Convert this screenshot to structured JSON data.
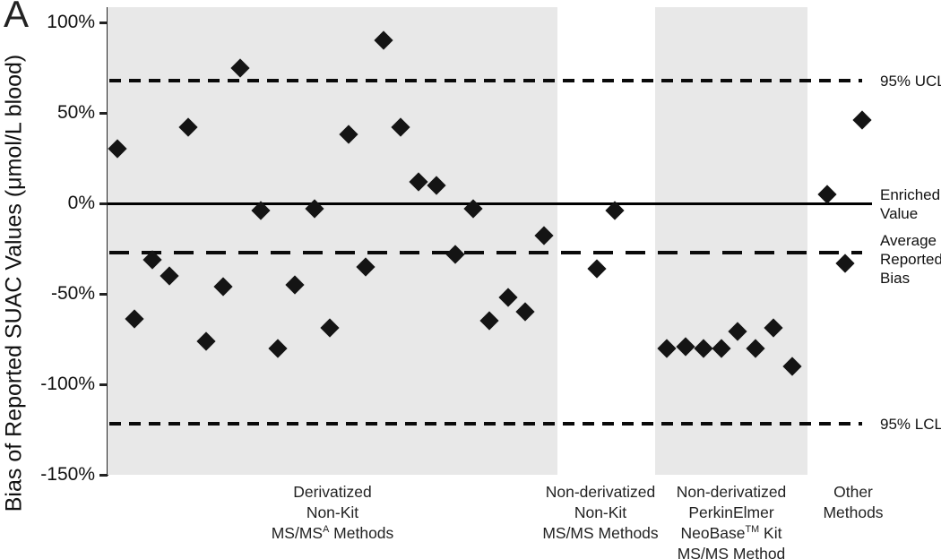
{
  "panel_label": "A",
  "y_axis": {
    "title": "Bias of Reported SUAC Values (μmol/L blood)",
    "ticks": [
      {
        "label": "100%",
        "value": 100
      },
      {
        "label": "50%",
        "value": 50
      },
      {
        "label": "0%",
        "value": 0
      },
      {
        "label": "-50%",
        "value": -50
      },
      {
        "label": "-100%",
        "value": -100
      },
      {
        "label": "-150%",
        "value": -150
      }
    ]
  },
  "colors": {
    "band": "#e8e8e8",
    "marker": "#141414",
    "line": "#000000"
  },
  "chart_data": {
    "type": "scatter",
    "marker": "diamond",
    "ylabel": "Bias of Reported SUAC Values (μmol/L blood)",
    "ylim": [
      -150,
      110
    ],
    "grid": false,
    "reference_lines": [
      {
        "id": "ucl",
        "value_pct": 68,
        "style": "dash-short",
        "label_lines": [
          "95% UCL"
        ]
      },
      {
        "id": "enriched",
        "value_pct": 0,
        "style": "solid",
        "label_lines": [
          "Enriched",
          "Value"
        ]
      },
      {
        "id": "avg_bias",
        "value_pct": -27,
        "style": "dash-long",
        "label_lines": [
          "Average",
          "Reported",
          "Bias"
        ]
      },
      {
        "id": "lcl",
        "value_pct": -122,
        "style": "dash-short",
        "label_lines": [
          "95% LCL"
        ]
      }
    ],
    "groups": [
      {
        "name": "derivatized-non-kit",
        "label_lines": [
          "Derivatized",
          "Non-Kit",
          {
            "parts": [
              {
                "text": "MS/MS"
              },
              {
                "text": "A",
                "sup": true
              },
              {
                "text": " Methods"
              }
            ]
          }
        ],
        "shaded": true,
        "x_range": [
          120,
          622
        ],
        "label_x": 371,
        "points": [
          {
            "x": 131,
            "bias_pct": 30
          },
          {
            "x": 150,
            "bias_pct": -64
          },
          {
            "x": 170,
            "bias_pct": -31
          },
          {
            "x": 189,
            "bias_pct": -40
          },
          {
            "x": 210,
            "bias_pct": 42
          },
          {
            "x": 230,
            "bias_pct": -76
          },
          {
            "x": 249,
            "bias_pct": -46
          },
          {
            "x": 268,
            "bias_pct": 75
          },
          {
            "x": 291,
            "bias_pct": -4
          },
          {
            "x": 310,
            "bias_pct": -80
          },
          {
            "x": 329,
            "bias_pct": -45
          },
          {
            "x": 351,
            "bias_pct": -3
          },
          {
            "x": 368,
            "bias_pct": -69
          },
          {
            "x": 389,
            "bias_pct": 38
          },
          {
            "x": 408,
            "bias_pct": -35
          },
          {
            "x": 428,
            "bias_pct": 90
          },
          {
            "x": 447,
            "bias_pct": 42
          },
          {
            "x": 467,
            "bias_pct": 12
          },
          {
            "x": 487,
            "bias_pct": 10
          },
          {
            "x": 508,
            "bias_pct": -28
          },
          {
            "x": 528,
            "bias_pct": -3
          },
          {
            "x": 546,
            "bias_pct": -65
          },
          {
            "x": 567,
            "bias_pct": -52
          },
          {
            "x": 586,
            "bias_pct": -60
          },
          {
            "x": 607,
            "bias_pct": -18
          }
        ]
      },
      {
        "name": "non-derivatized-non-kit",
        "label_lines": [
          "Non-derivatized",
          "Non-Kit",
          "MS/MS Methods"
        ],
        "shaded": false,
        "x_range": [
          622,
          731
        ],
        "label_x": 670,
        "points": [
          {
            "x": 666,
            "bias_pct": -36
          },
          {
            "x": 686,
            "bias_pct": -4
          }
        ]
      },
      {
        "name": "non-derivatized-perkinelmer-neobase",
        "label_lines": [
          "Non-derivatized",
          "PerkinElmer",
          {
            "parts": [
              {
                "text": "NeoBase"
              },
              {
                "text": "TM",
                "sup": true
              },
              {
                "text": " Kit"
              }
            ]
          },
          "MS/MS Method"
        ],
        "shaded": true,
        "x_range": [
          731,
          901
        ],
        "label_x": 816,
        "points": [
          {
            "x": 744,
            "bias_pct": -80
          },
          {
            "x": 765,
            "bias_pct": -79
          },
          {
            "x": 785,
            "bias_pct": -80
          },
          {
            "x": 805,
            "bias_pct": -80
          },
          {
            "x": 823,
            "bias_pct": -71
          },
          {
            "x": 843,
            "bias_pct": -80
          },
          {
            "x": 863,
            "bias_pct": -69
          },
          {
            "x": 884,
            "bias_pct": -90
          }
        ]
      },
      {
        "name": "other-methods",
        "label_lines": [
          "Other",
          "Methods"
        ],
        "shaded": false,
        "x_range": [
          901,
          973
        ],
        "label_x": 952,
        "points": [
          {
            "x": 923,
            "bias_pct": 5
          },
          {
            "x": 943,
            "bias_pct": -33
          },
          {
            "x": 962,
            "bias_pct": 46
          }
        ]
      }
    ]
  }
}
